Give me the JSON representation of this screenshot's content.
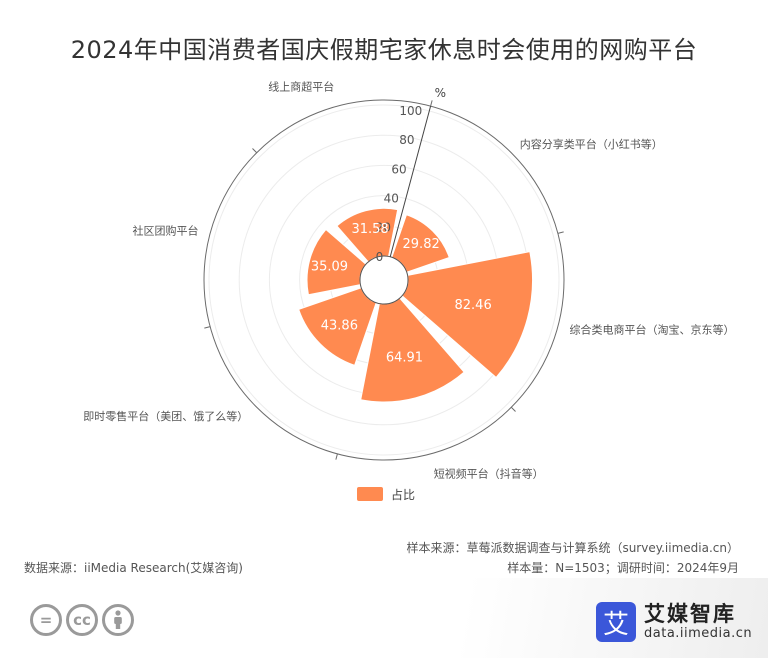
{
  "chart_data": {
    "type": "polar-bar",
    "title": "2024年中国消费者国庆假期宅家休息时会使用的网购平台",
    "unit": "%",
    "rlim": [
      0,
      100
    ],
    "radial_ticks": [
      "0",
      "20",
      "40",
      "60",
      "80",
      "100"
    ],
    "categories": [
      "内容分享类平台（小红书等）",
      "综合类电商平台（淘宝、京东等）",
      "短视频平台（抖音等）",
      "即时零售平台（美团、饿了么等）",
      "社区团购平台",
      "线上商超平台"
    ],
    "series": [
      {
        "name": "占比",
        "values": [
          29.82,
          82.46,
          64.91,
          43.86,
          35.09,
          31.58
        ]
      }
    ],
    "value_labels": [
      "29.82",
      "82.46",
      "64.91",
      "43.86",
      "35.09",
      "31.58"
    ],
    "legend_position": "bottom",
    "bar_color": "#FF8A50"
  },
  "footer": {
    "source": "数据来源：iiMedia Research(艾媒咨询)",
    "sample_source": "样本来源：草莓派数据调查与计算系统（survey.iimedia.cn）",
    "sample": "样本量：N=1503；调研时间：2024年9月"
  },
  "brand": {
    "logo_char": "艾",
    "name": "艾媒智库",
    "site": "data.iimedia.cn"
  },
  "license_icons": [
    "=",
    "cc",
    "person-icon"
  ]
}
